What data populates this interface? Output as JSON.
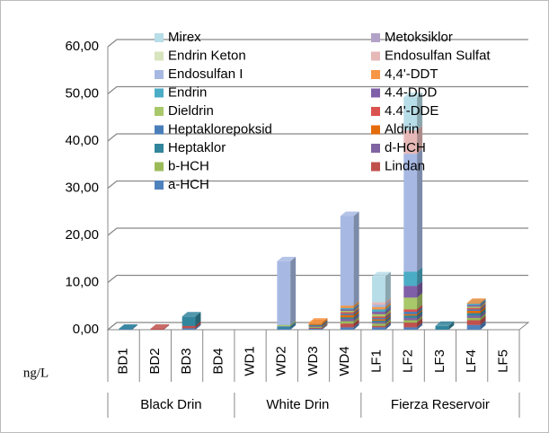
{
  "chart_data": {
    "type": "stacked-bar-3d",
    "y_unit_label": "ng/L",
    "categories": [
      "BD1",
      "BD2",
      "BD3",
      "BD4",
      "WD1",
      "WD2",
      "WD3",
      "WD4",
      "LF1",
      "LF2",
      "LF3",
      "LF4",
      "LF5"
    ],
    "groups": [
      {
        "name": "Black Drin",
        "size": 4
      },
      {
        "name": "White Drin",
        "size": 4
      },
      {
        "name": "Fierza Reservoir",
        "size": 5
      }
    ],
    "ylim": [
      0,
      60
    ],
    "yticks": [
      {
        "value": 0,
        "label": "0,00"
      },
      {
        "value": 10,
        "label": "10,00"
      },
      {
        "value": 20,
        "label": "20,00"
      },
      {
        "value": 30,
        "label": "30,00"
      },
      {
        "value": 40,
        "label": "40,00"
      },
      {
        "value": 50,
        "label": "50,00"
      },
      {
        "value": 60,
        "label": "60,00"
      }
    ],
    "grid": true,
    "series": [
      {
        "name": "a-HCH",
        "color": "#4F81BD",
        "values": [
          0.1,
          0,
          0.3,
          0,
          0,
          0.2,
          0.2,
          0.5,
          0.5,
          0.5,
          0,
          1.0,
          0
        ]
      },
      {
        "name": "Lindan",
        "color": "#C0504D",
        "values": [
          0,
          0.2,
          0.5,
          0,
          0,
          0,
          0.2,
          0.8,
          0.3,
          1.0,
          0,
          1.0,
          0
        ]
      },
      {
        "name": "b-HCH",
        "color": "#9BBB59",
        "values": [
          0,
          0,
          0,
          0,
          0,
          0,
          0.2,
          0.5,
          0.5,
          0.5,
          0,
          0.5,
          0
        ]
      },
      {
        "name": "d-HCH",
        "color": "#8064A2",
        "values": [
          0,
          0,
          0,
          0,
          0,
          0,
          0.2,
          0.5,
          0.3,
          0.5,
          0,
          0.5,
          0
        ]
      },
      {
        "name": "Heptaklor",
        "color": "#31859C",
        "values": [
          0.1,
          0,
          2.0,
          0,
          0,
          0.3,
          0.2,
          0.3,
          0.3,
          0.5,
          0.8,
          0.5,
          0
        ]
      },
      {
        "name": "Aldrin",
        "color": "#E46C0A",
        "values": [
          0,
          0,
          0,
          0,
          0,
          0,
          0.2,
          0.5,
          0.3,
          0.3,
          0,
          0.5,
          0
        ]
      },
      {
        "name": "Heptaklorepoksid",
        "color": "#4A7EBB",
        "values": [
          0,
          0,
          0,
          0,
          0,
          0.2,
          0,
          0.3,
          0.3,
          0.5,
          0,
          0.3,
          0
        ]
      },
      {
        "name": "4.4'-DDE",
        "color": "#D9534F",
        "values": [
          0,
          0,
          0,
          0,
          0,
          0,
          0,
          0.3,
          0.3,
          0.5,
          0,
          0.3,
          0
        ]
      },
      {
        "name": "Dieldrin",
        "color": "#A9C86A",
        "values": [
          0,
          0,
          0,
          0,
          0,
          0.3,
          0,
          0.3,
          0.5,
          2.5,
          0,
          0.3,
          0
        ]
      },
      {
        "name": "4.4-DDD",
        "color": "#7F5FA8",
        "values": [
          0,
          0,
          0,
          0,
          0,
          0,
          0,
          0.3,
          0.5,
          2.5,
          0,
          0.3,
          0
        ]
      },
      {
        "name": "Endrin",
        "color": "#4BACC6",
        "values": [
          0,
          0,
          0,
          0,
          0,
          0,
          0,
          0.3,
          0.5,
          3.0,
          0,
          0.3,
          0
        ]
      },
      {
        "name": "4,4'-DDT",
        "color": "#F79646",
        "values": [
          0,
          0,
          0,
          0,
          0,
          0,
          0.3,
          0.5,
          0.5,
          0,
          0,
          0.2,
          0
        ]
      },
      {
        "name": "Endosulfan I",
        "color": "#A7B9E3",
        "values": [
          0,
          0,
          0,
          0,
          0,
          13.5,
          0,
          19,
          0.5,
          25,
          0,
          0,
          0
        ]
      },
      {
        "name": "Endosulfan Sulfat",
        "color": "#E6B9B8",
        "values": [
          0,
          0,
          0,
          0,
          0,
          0,
          0,
          0,
          0.5,
          5,
          0,
          0,
          0
        ]
      },
      {
        "name": "Endrin Keton",
        "color": "#D7E4BD",
        "values": [
          0,
          0,
          0,
          0,
          0,
          0,
          0,
          0,
          0,
          0,
          0,
          0,
          0
        ]
      },
      {
        "name": "Metoksiklor",
        "color": "#B3A2C7",
        "values": [
          0,
          0,
          0,
          0,
          0,
          0,
          0,
          0,
          0,
          0,
          0,
          0,
          0
        ]
      },
      {
        "name": "Mirex",
        "color": "#B7DDE8",
        "values": [
          0,
          0,
          0,
          0,
          0,
          0,
          0,
          0,
          5.5,
          7,
          0,
          0,
          0
        ]
      }
    ]
  }
}
